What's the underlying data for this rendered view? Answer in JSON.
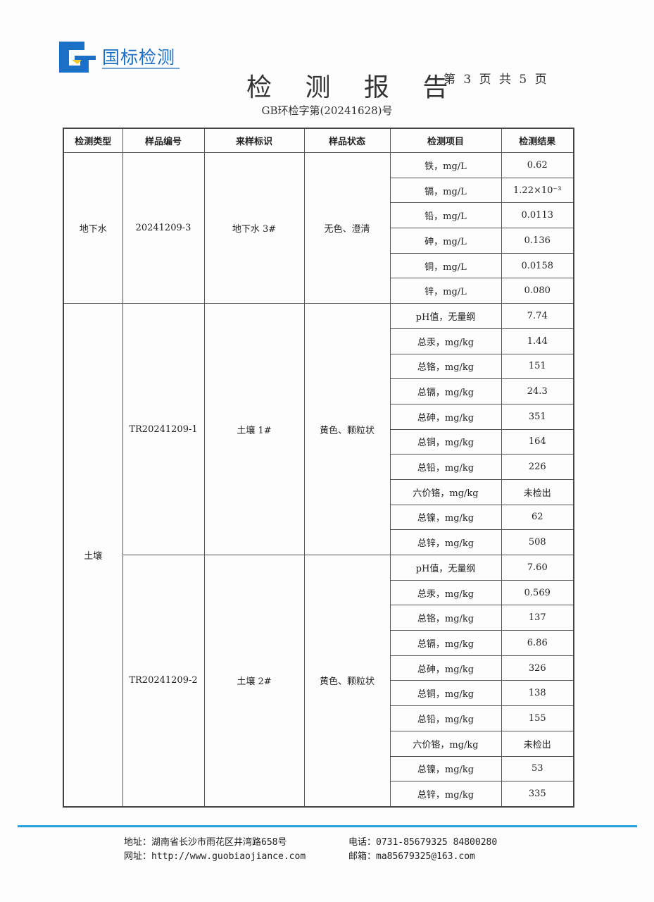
{
  "header": {
    "logo_text": "国标检测",
    "title": "检 测 报 告",
    "page_info": "第 3 页 共 5 页",
    "doc_number": "GB环检字第(20241628)号"
  },
  "table": {
    "columns": [
      "检测类型",
      "样品编号",
      "来样标识",
      "样品状态",
      "检测项目",
      "检测结果"
    ],
    "groups": [
      {
        "type": "地下水",
        "samples": [
          {
            "id": "20241209-3",
            "label": "地下水 3#",
            "state": "无色、澄清",
            "items": [
              [
                "铁，mg/L",
                "0.62"
              ],
              [
                "镉，mg/L",
                "1.22×10⁻³"
              ],
              [
                "铅，mg/L",
                "0.0113"
              ],
              [
                "砷，mg/L",
                "0.136"
              ],
              [
                "铜，mg/L",
                "0.0158"
              ],
              [
                "锌，mg/L",
                "0.080"
              ]
            ]
          }
        ]
      },
      {
        "type": "土壤",
        "samples": [
          {
            "id": "TR20241209-1",
            "label": "土壤 1#",
            "state": "黄色、颗粒状",
            "items": [
              [
                "pH值，无量纲",
                "7.74"
              ],
              [
                "总汞，mg/kg",
                "1.44"
              ],
              [
                "总铬，mg/kg",
                "151"
              ],
              [
                "总镉，mg/kg",
                "24.3"
              ],
              [
                "总砷，mg/kg",
                "351"
              ],
              [
                "总铜，mg/kg",
                "164"
              ],
              [
                "总铅，mg/kg",
                "226"
              ],
              [
                "六价铬，mg/kg",
                "未检出"
              ],
              [
                "总镍，mg/kg",
                "62"
              ],
              [
                "总锌，mg/kg",
                "508"
              ]
            ]
          },
          {
            "id": "TR20241209-2",
            "label": "土壤 2#",
            "state": "黄色、颗粒状",
            "items": [
              [
                "pH值，无量纲",
                "7.60"
              ],
              [
                "总汞，mg/kg",
                "0.569"
              ],
              [
                "总铬，mg/kg",
                "137"
              ],
              [
                "总镉，mg/kg",
                "6.86"
              ],
              [
                "总砷，mg/kg",
                "326"
              ],
              [
                "总铜，mg/kg",
                "138"
              ],
              [
                "总铅，mg/kg",
                "155"
              ],
              [
                "六价铬，mg/kg",
                "未检出"
              ],
              [
                "总镍，mg/kg",
                "53"
              ],
              [
                "总锌，mg/kg",
                "335"
              ]
            ]
          }
        ]
      }
    ]
  },
  "footer": {
    "address": "地址：湖南省长沙市雨花区井湾路658号",
    "website": "网址：http://www.guobiaojiance.com",
    "phone": "电话：0731-85679325  84800280",
    "email": "邮箱：ma85679325@163.com"
  },
  "colors": {
    "brand": "#1b6fc4",
    "footer_line": "#2aa0dc"
  }
}
